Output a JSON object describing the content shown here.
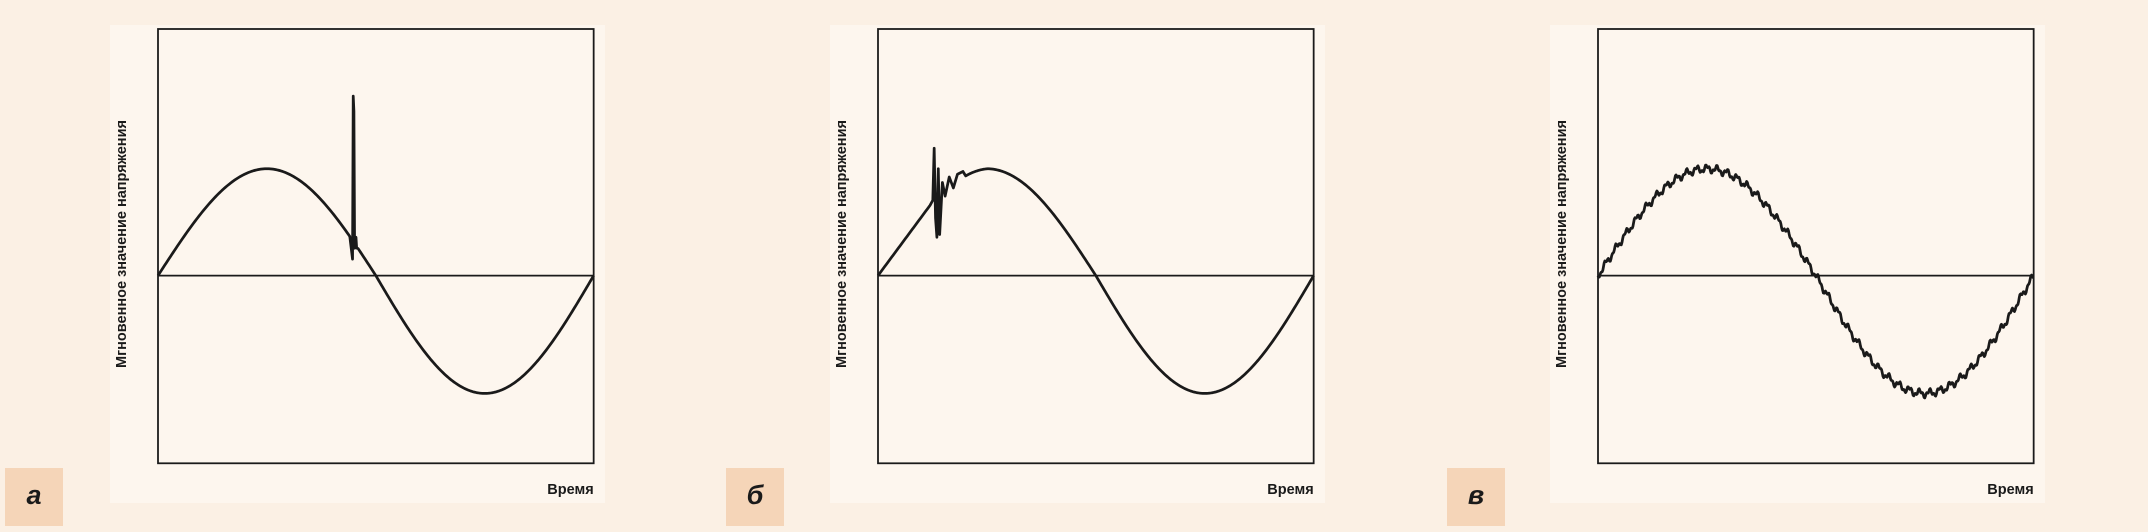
{
  "panels": [
    {
      "label": "а",
      "y_axis_label": "Мгновенное значение напряжения",
      "x_axis_label": "Время"
    },
    {
      "label": "б",
      "y_axis_label": "Мгновенное значение напряжения",
      "x_axis_label": "Время"
    },
    {
      "label": "в",
      "y_axis_label": "Мгновенное значение напряжения",
      "x_axis_label": "Время"
    }
  ]
}
